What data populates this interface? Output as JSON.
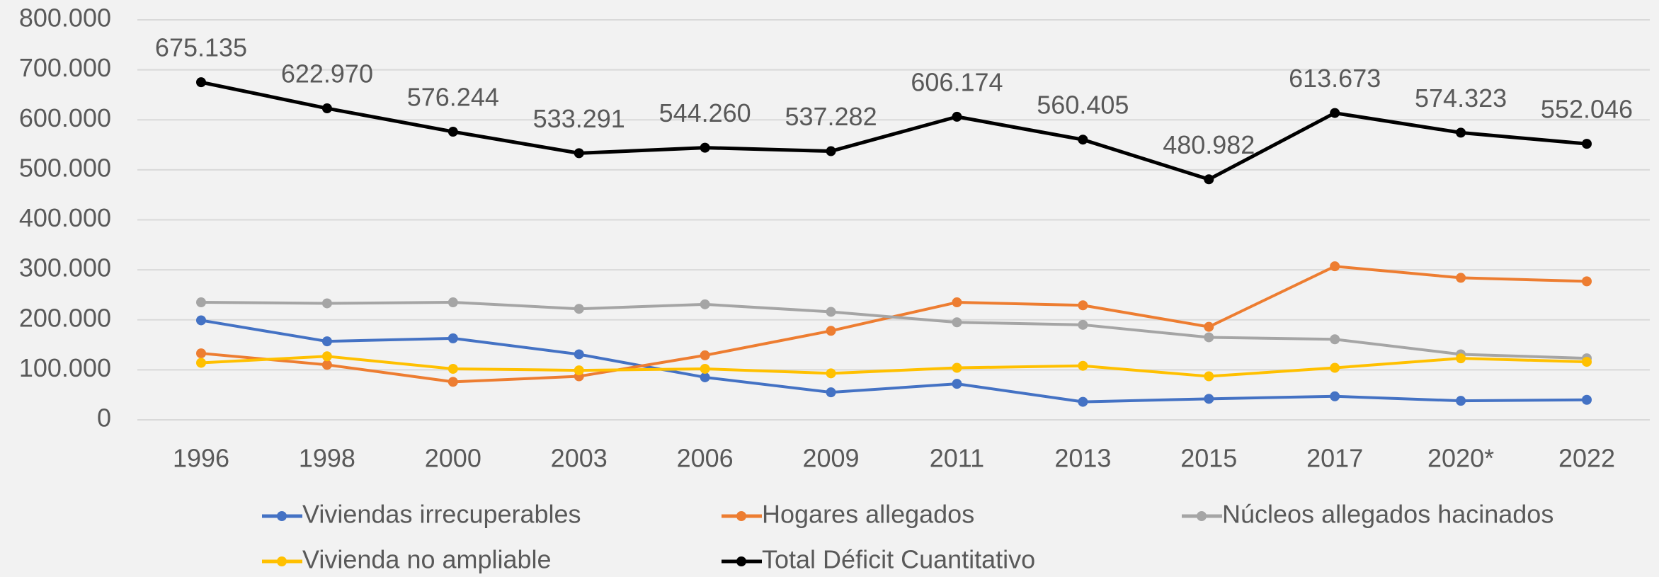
{
  "chart_data": {
    "type": "line",
    "categories": [
      "1996",
      "1998",
      "2000",
      "2003",
      "2006",
      "2009",
      "2011",
      "2013",
      "2015",
      "2017",
      "2020*",
      "2022"
    ],
    "series": [
      {
        "name": "Viviendas irrecuperables",
        "color": "#4472c4",
        "values": [
          199000,
          157000,
          163000,
          131000,
          85000,
          55000,
          72000,
          36000,
          42000,
          47000,
          38000,
          40000
        ]
      },
      {
        "name": "Hogares allegados",
        "color": "#ed7d31",
        "values": [
          133000,
          110000,
          76000,
          87000,
          129000,
          178000,
          235000,
          229000,
          186000,
          307000,
          284000,
          277000
        ]
      },
      {
        "name": "Núcleos allegados hacinados",
        "color": "#a5a5a5",
        "values": [
          235000,
          233000,
          235000,
          222000,
          231000,
          216000,
          195000,
          190000,
          165000,
          161000,
          131000,
          123000
        ]
      },
      {
        "name": "Vivienda no ampliable",
        "color": "#ffc000",
        "values": [
          114000,
          127000,
          102000,
          99000,
          102000,
          93000,
          104000,
          108000,
          87000,
          104000,
          123000,
          116000
        ]
      },
      {
        "name": "Total  Déficit Cuantitativo",
        "color": "#000000",
        "values": [
          675135,
          622970,
          576244,
          533291,
          544260,
          537282,
          606174,
          560405,
          480982,
          613673,
          574323,
          552046
        ],
        "value_labels": [
          "675.135",
          "622.970",
          "576.244",
          "533.291",
          "544.260",
          "537.282",
          "606.174",
          "560.405",
          "480.982",
          "613.673",
          "574.323",
          "552.046"
        ]
      }
    ],
    "ylim": [
      0,
      800000
    ],
    "yticks": [
      0,
      {
        "value": 100000,
        "label": "100.000"
      },
      {
        "value": 200000,
        "label": "200.000"
      },
      {
        "value": 300000,
        "label": "300.000"
      },
      {
        "value": 400000,
        "label": "400.000"
      },
      {
        "value": 500000,
        "label": "500.000"
      },
      {
        "value": 600000,
        "label": "600.000"
      },
      {
        "value": 700000,
        "label": "700.000"
      },
      {
        "value": 800000,
        "label": "800.000"
      }
    ],
    "grid": true,
    "legend": "bottom"
  }
}
